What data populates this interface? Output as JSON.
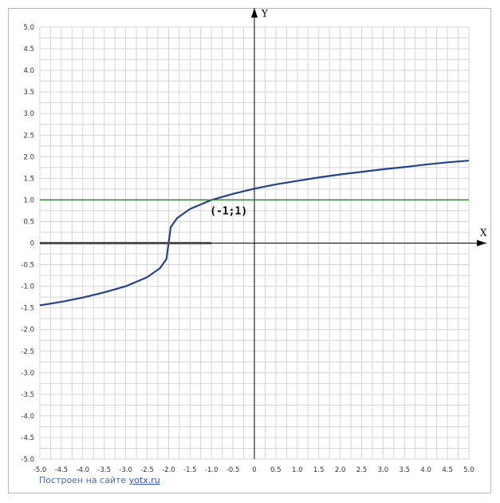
{
  "chart_data": {
    "type": "line",
    "xlabel": "X",
    "ylabel": "Y",
    "xlim": [
      -5,
      5
    ],
    "ylim": [
      -5,
      5
    ],
    "grid": true,
    "x_ticks": [
      "-5.0",
      "-4.5",
      "-4.0",
      "-3.5",
      "-3.0",
      "-2.5",
      "-2.0",
      "-1.5",
      "-1.0",
      "-0.5",
      "0",
      "0.5",
      "1.0",
      "1.5",
      "2.0",
      "2.5",
      "3.0",
      "3.5",
      "4.0",
      "4.5",
      "5.0"
    ],
    "y_ticks": [
      "5.0",
      "4.5",
      "4.0",
      "3.5",
      "3.0",
      "2.5",
      "2.0",
      "1.5",
      "1.0",
      "0.5",
      "0",
      "-0.5",
      "-1.0",
      "-1.5",
      "-2.0",
      "-2.5",
      "-3.0",
      "-3.5",
      "-4.0",
      "-4.5",
      "-5.0"
    ],
    "series": [
      {
        "color": "#24418a",
        "x": [
          -5,
          -4.5,
          -4,
          -3.5,
          -3,
          -2.5,
          -2.2,
          -2.05,
          -2,
          -1.95,
          -1.8,
          -1.5,
          -1,
          -0.5,
          0,
          0.5,
          1,
          1.5,
          2,
          2.5,
          3,
          3.5,
          4,
          4.5,
          5
        ],
        "y": [
          -1.44,
          -1.36,
          -1.26,
          -1.14,
          -1.0,
          -0.79,
          -0.58,
          -0.37,
          0,
          0.37,
          0.58,
          0.79,
          1.0,
          1.14,
          1.26,
          1.36,
          1.44,
          1.52,
          1.59,
          1.65,
          1.71,
          1.76,
          1.82,
          1.87,
          1.91
        ]
      },
      {
        "color": "#2a8a2a",
        "x": [
          -5,
          5
        ],
        "y": [
          1,
          1
        ]
      },
      {
        "color": "#505050",
        "x": [
          -5,
          -1
        ],
        "y": [
          0,
          0
        ]
      }
    ],
    "annotations": [
      {
        "text": "(-1;1)",
        "x": -1,
        "y": 1
      }
    ]
  },
  "footer": {
    "credit_prefix": "Построен на сайте ",
    "credit_link": "yotx.ru"
  }
}
